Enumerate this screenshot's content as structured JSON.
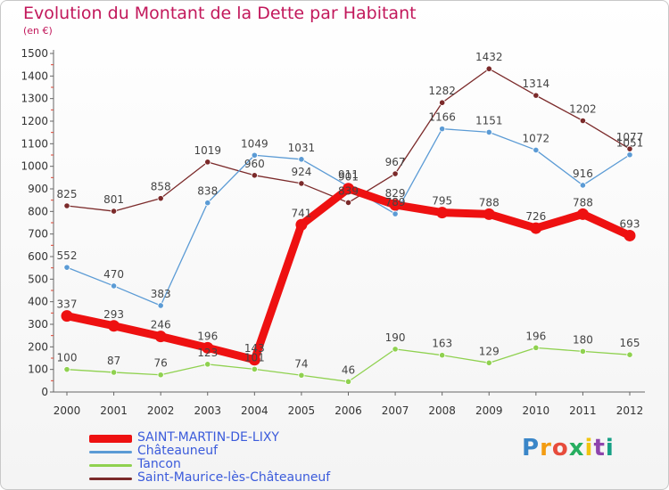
{
  "title": "Evolution du Montant de la Dette par Habitant",
  "subtitle": "(en €)",
  "logo_text": "Proxiti",
  "chart_data": {
    "type": "line",
    "title": "Evolution du Montant de la Dette par Habitant",
    "subtitle": "(en €)",
    "x": [
      "2000",
      "2001",
      "2002",
      "2003",
      "2004",
      "2005",
      "2006",
      "2007",
      "2008",
      "2009",
      "2010",
      "2011",
      "2012"
    ],
    "y_ticks": [
      "0",
      "100",
      "200",
      "300",
      "400",
      "500",
      "600",
      "700",
      "800",
      "900",
      "1000",
      "1100",
      "1200",
      "1300",
      "1400",
      "1500"
    ],
    "ylim": [
      0,
      1500
    ],
    "grid": false,
    "legend_position": "bottom-left",
    "series": [
      {
        "name": "Saint-Maurice-lès-Châteauneuf",
        "color": "#7b2a2a",
        "values": [
          825,
          801,
          858,
          1019,
          960,
          924,
          839,
          967,
          1282,
          1432,
          1314,
          1202,
          1077
        ],
        "labels": [
          "825",
          "801",
          "858",
          "1019",
          "960",
          "924",
          "839",
          "967",
          "1282",
          "1432",
          "1314",
          "1202",
          "1077"
        ]
      },
      {
        "name": "Châteauneuf",
        "color": "#5b9bd5",
        "values": [
          552,
          470,
          383,
          838,
          1049,
          1031,
          911,
          789,
          1166,
          1151,
          1072,
          916,
          1051
        ],
        "labels": [
          "552",
          "470",
          "383",
          "838",
          "1049",
          "1031",
          "911",
          "789",
          "1166",
          "1151",
          "1072",
          "916",
          "1051"
        ]
      },
      {
        "name": "Tancon",
        "color": "#8fd14f",
        "values": [
          100,
          87,
          76,
          123,
          101,
          74,
          46,
          190,
          163,
          129,
          196,
          180,
          165
        ],
        "labels": [
          "100",
          "87",
          "76",
          "123",
          "101",
          "74",
          "46",
          "190",
          "163",
          "129",
          "196",
          "180",
          "165"
        ]
      },
      {
        "name": "SAINT-MARTIN-DE-LIXY",
        "color": "#ee1111",
        "values": [
          337,
          293,
          246,
          196,
          143,
          741,
          901,
          829,
          795,
          788,
          726,
          788,
          693
        ],
        "labels": [
          "337",
          "293",
          "246",
          "196",
          "143",
          "741",
          "901",
          "829",
          "795",
          "788",
          "726",
          "788",
          "693"
        ]
      }
    ]
  },
  "legend": [
    {
      "name": "SAINT-MARTIN-DE-LIXY",
      "color": "#ee1111",
      "thickness": 9
    },
    {
      "name": "Châteauneuf",
      "color": "#5b9bd5",
      "thickness": 3
    },
    {
      "name": "Tancon",
      "color": "#8fd14f",
      "thickness": 3
    },
    {
      "name": "Saint-Maurice-lès-Châteauneuf",
      "color": "#7b2a2a",
      "thickness": 3
    }
  ]
}
